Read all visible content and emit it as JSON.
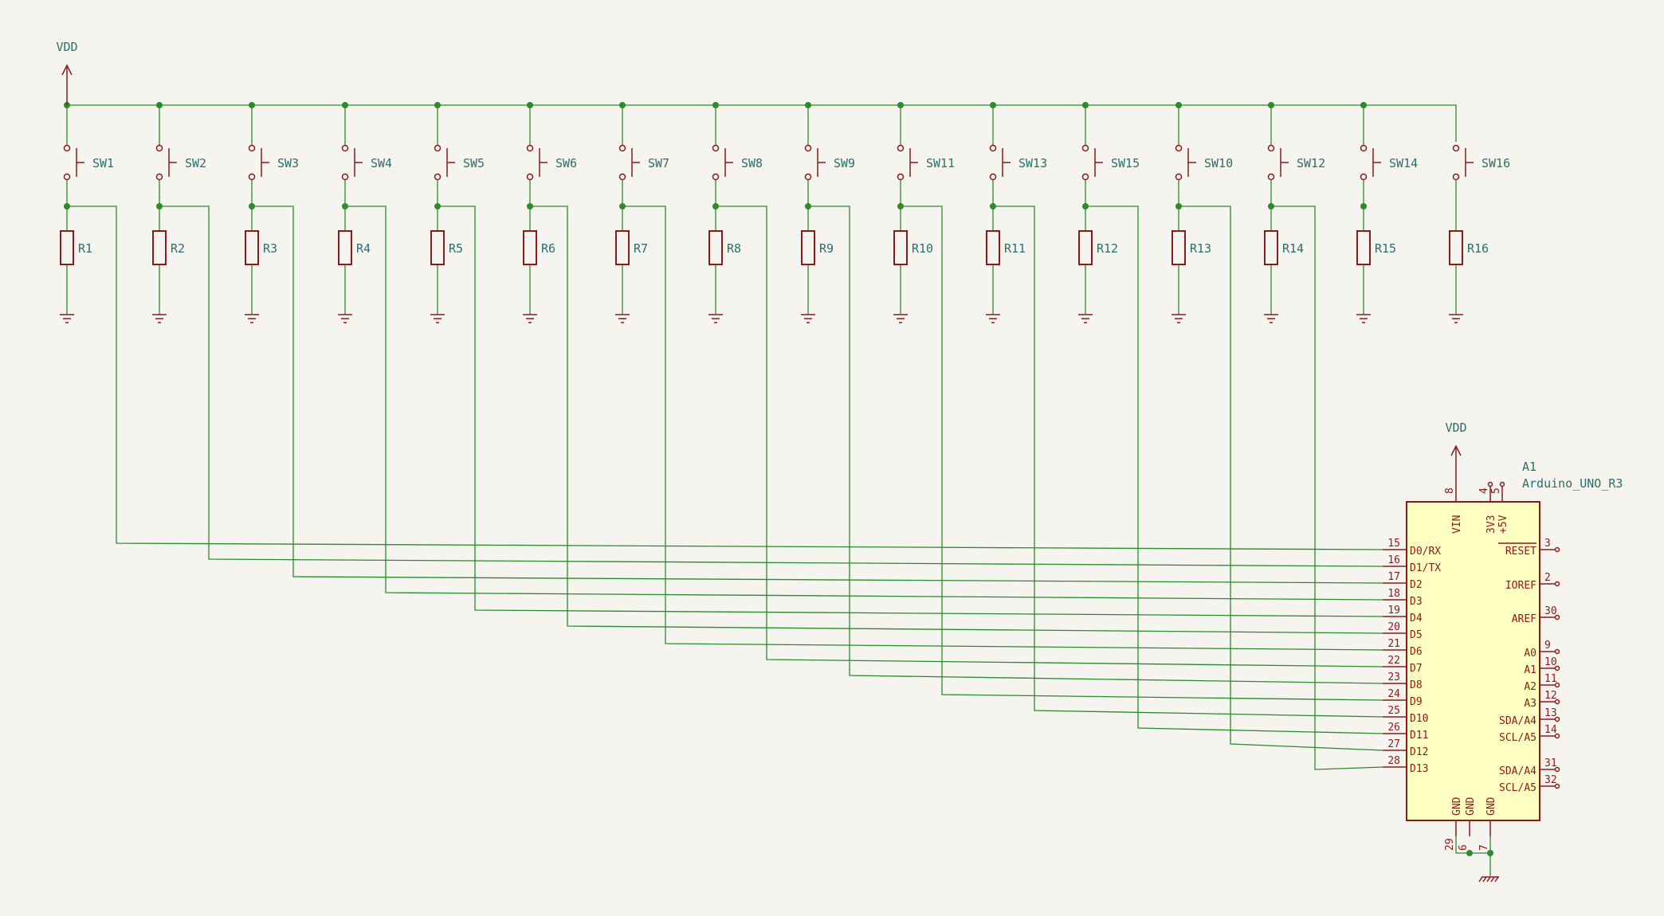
{
  "power": {
    "vdd_label": "VDD"
  },
  "switch_labels": [
    "SW1",
    "SW2",
    "SW3",
    "SW4",
    "SW5",
    "SW6",
    "SW7",
    "SW8",
    "SW9",
    "SW11",
    "SW13",
    "SW15",
    "SW10",
    "SW12",
    "SW14",
    "SW16"
  ],
  "resistor_labels": [
    "R1",
    "R2",
    "R3",
    "R4",
    "R5",
    "R6",
    "R7",
    "R8",
    "R9",
    "R10",
    "R11",
    "R12",
    "R13",
    "R14",
    "R15",
    "R16"
  ],
  "arduino": {
    "ref": "A1",
    "value": "Arduino_UNO_R3",
    "top_pins": [
      {
        "num": "8",
        "name": "VIN"
      },
      {
        "num": "4",
        "name": "3V3"
      },
      {
        "num": "5",
        "name": "+5V"
      }
    ],
    "left_pins": [
      {
        "num": "15",
        "name": "D0/RX"
      },
      {
        "num": "16",
        "name": "D1/TX"
      },
      {
        "num": "17",
        "name": "D2"
      },
      {
        "num": "18",
        "name": "D3"
      },
      {
        "num": "19",
        "name": "D4"
      },
      {
        "num": "20",
        "name": "D5"
      },
      {
        "num": "21",
        "name": "D6"
      },
      {
        "num": "22",
        "name": "D7"
      },
      {
        "num": "23",
        "name": "D8"
      },
      {
        "num": "24",
        "name": "D9"
      },
      {
        "num": "25",
        "name": "D10"
      },
      {
        "num": "26",
        "name": "D11"
      },
      {
        "num": "27",
        "name": "D12"
      },
      {
        "num": "28",
        "name": "D13"
      }
    ],
    "right_pins": [
      {
        "num": "3",
        "name": "RESET"
      },
      {
        "num": "2",
        "name": "IOREF"
      },
      {
        "num": "30",
        "name": "AREF"
      },
      {
        "num": "9",
        "name": "A0"
      },
      {
        "num": "10",
        "name": "A1"
      },
      {
        "num": "11",
        "name": "A2"
      },
      {
        "num": "12",
        "name": "A3"
      },
      {
        "num": "13",
        "name": "SDA/A4"
      },
      {
        "num": "14",
        "name": "SCL/A5"
      },
      {
        "num": "31",
        "name": "SDA/A4"
      },
      {
        "num": "32",
        "name": "SCL/A5"
      }
    ],
    "bottom_pins": [
      {
        "num": "29",
        "name": "GND"
      },
      {
        "num": "6",
        "name": "GND"
      },
      {
        "num": "7",
        "name": "GND"
      }
    ]
  },
  "colors": {
    "background": "#f5f4ef",
    "wire": "#2d8a2d",
    "symbol": "#8c1a1a",
    "label": "#2b6e6e",
    "ic_fill": "#ffffc2"
  }
}
